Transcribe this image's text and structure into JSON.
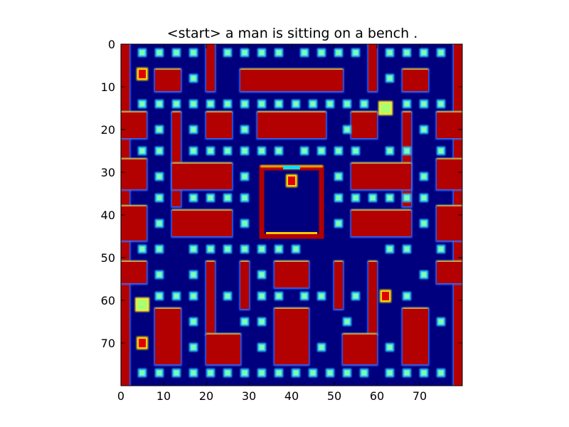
{
  "title": "<start> a man is sitting on a bench .",
  "axes": {
    "x_ticks": [
      "0",
      "10",
      "20",
      "30",
      "40",
      "50",
      "60",
      "70"
    ],
    "y_ticks": [
      "0",
      "10",
      "20",
      "30",
      "40",
      "50",
      "60",
      "70"
    ],
    "xlim": [
      0,
      80
    ],
    "ylim": [
      80,
      0
    ]
  },
  "colors": {
    "background": "#00007f",
    "wall": "#b30000",
    "wall_edge_top": "#ffcc00",
    "wall_edge_bottom": "#3a6cff",
    "pellet": "#7fffb0",
    "pellet_glow": "#33ccff",
    "ghost_door": "#00e5ff"
  },
  "maze": {
    "walls": [
      [
        0,
        0,
        2,
        80
      ],
      [
        78,
        0,
        2,
        80
      ],
      [
        20,
        0,
        2,
        11
      ],
      [
        58,
        0,
        2,
        11
      ],
      [
        8,
        6,
        6,
        5
      ],
      [
        66,
        6,
        6,
        5
      ],
      [
        28,
        6,
        24,
        5
      ],
      [
        0,
        16,
        6,
        6
      ],
      [
        74,
        16,
        6,
        6
      ],
      [
        12,
        16,
        2,
        22
      ],
      [
        66,
        16,
        2,
        22
      ],
      [
        20,
        16,
        6,
        6
      ],
      [
        54,
        16,
        6,
        6
      ],
      [
        32,
        16,
        16,
        6
      ],
      [
        0,
        27,
        6,
        7
      ],
      [
        74,
        27,
        6,
        7
      ],
      [
        12,
        28,
        14,
        6
      ],
      [
        54,
        28,
        14,
        6
      ],
      [
        0,
        38,
        6,
        8
      ],
      [
        74,
        38,
        6,
        8
      ],
      [
        12,
        39,
        14,
        6
      ],
      [
        54,
        39,
        14,
        6
      ],
      [
        0,
        51,
        6,
        5
      ],
      [
        74,
        51,
        6,
        5
      ],
      [
        20,
        51,
        2,
        17
      ],
      [
        58,
        51,
        2,
        17
      ],
      [
        28,
        51,
        2,
        11
      ],
      [
        50,
        51,
        2,
        11
      ],
      [
        36,
        51,
        8,
        6
      ],
      [
        8,
        62,
        6,
        13
      ],
      [
        66,
        62,
        6,
        13
      ],
      [
        20,
        68,
        8,
        7
      ],
      [
        52,
        68,
        8,
        7
      ],
      [
        36,
        62,
        8,
        13
      ]
    ],
    "ghost_house": [
      33,
      29,
      14,
      16
    ],
    "pellet_rows": [
      {
        "y": 2,
        "x": [
          5,
          9,
          13,
          17,
          25,
          29,
          33,
          37,
          43,
          47,
          51,
          55,
          63,
          67,
          71,
          75
        ]
      },
      {
        "y": 8,
        "x": [
          17,
          63
        ]
      },
      {
        "y": 14,
        "x": [
          5,
          9,
          13,
          17,
          21,
          25,
          29,
          33,
          37,
          41,
          45,
          49,
          53,
          57,
          67,
          71,
          75
        ]
      },
      {
        "y": 20,
        "x": [
          9,
          17,
          29,
          53,
          71
        ]
      },
      {
        "y": 25,
        "x": [
          5,
          9,
          17,
          21,
          25,
          29,
          33,
          37,
          43,
          47,
          51,
          55,
          63,
          67,
          75
        ]
      },
      {
        "y": 31,
        "x": [
          9,
          29,
          51,
          71
        ]
      },
      {
        "y": 36,
        "x": [
          9,
          17,
          21,
          25,
          29,
          51,
          55,
          59,
          63,
          67,
          71
        ]
      },
      {
        "y": 42,
        "x": [
          9,
          29,
          51,
          71
        ]
      },
      {
        "y": 48,
        "x": [
          5,
          9,
          17,
          21,
          25,
          29,
          33,
          37,
          41,
          63,
          67,
          75
        ]
      },
      {
        "y": 54,
        "x": [
          9,
          17,
          33,
          71
        ]
      },
      {
        "y": 59,
        "x": [
          9,
          13,
          17,
          25,
          33,
          37,
          43,
          47,
          55,
          67
        ]
      },
      {
        "y": 65,
        "x": [
          17,
          29,
          33,
          53,
          75
        ]
      },
      {
        "y": 71,
        "x": [
          17,
          33,
          47,
          63
        ]
      },
      {
        "y": 77,
        "x": [
          5,
          9,
          13,
          17,
          21,
          25,
          29,
          33,
          37,
          41,
          45,
          49,
          53,
          57,
          63,
          67,
          71,
          75
        ]
      }
    ],
    "power_pellets": [
      [
        62,
        15
      ],
      [
        5,
        61
      ]
    ],
    "sprites": [
      [
        40,
        32
      ],
      [
        62,
        59
      ],
      [
        5,
        7
      ],
      [
        5,
        70
      ]
    ]
  }
}
